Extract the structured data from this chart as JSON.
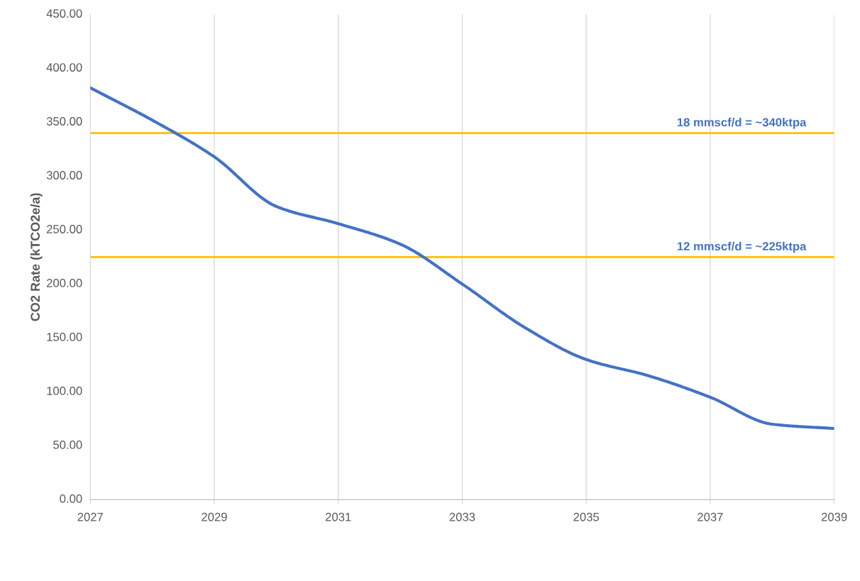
{
  "chart_data": {
    "type": "line",
    "ylabel": "CO2 Rate (kTCO2e/a)",
    "x": [
      2027,
      2028,
      2029,
      2030,
      2031,
      2032,
      2033,
      2034,
      2035,
      2036,
      2037,
      2038,
      2039
    ],
    "series": [
      {
        "color": "#4472c4",
        "values": [
          382,
          352,
          318,
          272,
          256,
          237,
          200,
          160,
          130,
          115,
          95,
          70,
          66
        ]
      }
    ],
    "xlim": [
      2027,
      2039
    ],
    "xticks": [
      2027,
      2029,
      2031,
      2033,
      2035,
      2037,
      2039
    ],
    "ylim": [
      0,
      450
    ],
    "yticks": [
      {
        "value": 0,
        "label": "0.00"
      },
      {
        "value": 50,
        "label": "50.00"
      },
      {
        "value": 100,
        "label": "100.00"
      },
      {
        "value": 150,
        "label": "150.00"
      },
      {
        "value": 200,
        "label": "200.00"
      },
      {
        "value": 250,
        "label": "250.00"
      },
      {
        "value": 300,
        "label": "300.00"
      },
      {
        "value": 350,
        "label": "350.00"
      },
      {
        "value": 400,
        "label": "400.00"
      },
      {
        "value": 450,
        "label": "450.00"
      }
    ],
    "ref_lines": [
      {
        "axis": "y",
        "value": 340,
        "label": "18 mmscf/d = ~340ktpa",
        "color": "#ffc000"
      },
      {
        "axis": "y",
        "value": 225,
        "label": "12 mmscf/d = ~225ktpa",
        "color": "#ffc000"
      }
    ],
    "grid": "x",
    "marker": "none",
    "line_style": "solid"
  }
}
